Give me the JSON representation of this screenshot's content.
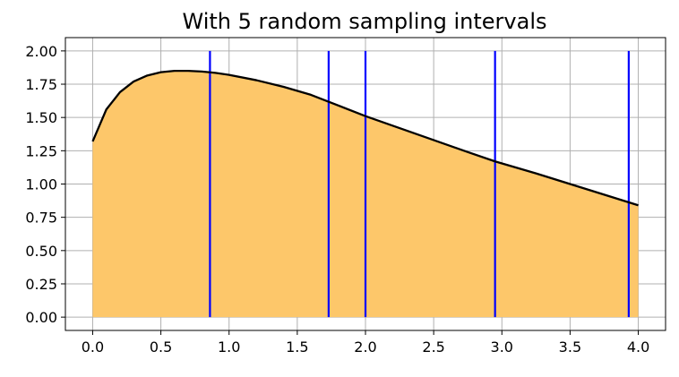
{
  "chart_data": {
    "type": "area",
    "title": "With 5 random sampling intervals",
    "xlabel": "",
    "ylabel": "",
    "xlim": [
      -0.2,
      4.2
    ],
    "ylim": [
      -0.1,
      2.1
    ],
    "x_ticks": [
      0.0,
      0.5,
      1.0,
      1.5,
      2.0,
      2.5,
      3.0,
      3.5,
      4.0
    ],
    "x_tick_labels": [
      "0.0",
      "0.5",
      "1.0",
      "1.5",
      "2.0",
      "2.5",
      "3.0",
      "3.5",
      "4.0"
    ],
    "y_ticks": [
      0.0,
      0.25,
      0.5,
      0.75,
      1.0,
      1.25,
      1.5,
      1.75,
      2.0
    ],
    "y_tick_labels": [
      "0.00",
      "0.25",
      "0.50",
      "0.75",
      "1.00",
      "1.25",
      "1.50",
      "1.75",
      "2.00"
    ],
    "grid": true,
    "series": [
      {
        "color": "#000000",
        "fill_color": "#fdc76a",
        "x": [
          0.0,
          0.1,
          0.2,
          0.3,
          0.4,
          0.5,
          0.6,
          0.7,
          0.8,
          0.9,
          1.0,
          1.2,
          1.4,
          1.6,
          1.75,
          2.0,
          2.25,
          2.5,
          2.75,
          2.95,
          3.25,
          3.5,
          3.75,
          4.0
        ],
        "y": [
          1.32,
          1.56,
          1.69,
          1.77,
          1.815,
          1.84,
          1.85,
          1.85,
          1.845,
          1.835,
          1.82,
          1.78,
          1.73,
          1.67,
          1.61,
          1.51,
          1.42,
          1.33,
          1.24,
          1.17,
          1.08,
          1.0,
          0.92,
          0.84
        ]
      }
    ],
    "sampling_intervals": {
      "color": "#0000ff",
      "x": [
        0.86,
        1.73,
        2.0,
        2.95,
        3.93
      ],
      "y_top": 2.0
    }
  }
}
